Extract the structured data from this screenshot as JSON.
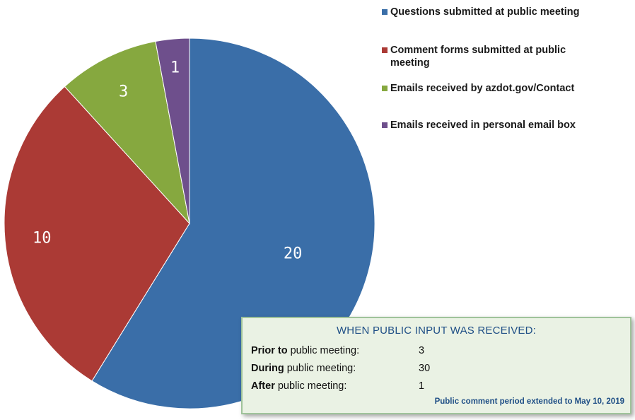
{
  "chart_data": {
    "type": "pie",
    "slices": [
      {
        "label": "Questions submitted at public meeting",
        "value": 20,
        "display": "20",
        "color": "#3a6ea8"
      },
      {
        "label": "Comment forms submitted at public meeting",
        "value": 10,
        "display": "10",
        "color": "#ab3a35"
      },
      {
        "label": "Emails received by azdot.gov/Contact",
        "value": 3,
        "display": "3",
        "color": "#86a83f"
      },
      {
        "label": "Emails received in personal email box",
        "value": 1,
        "display": "1",
        "color": "#6e4f8c"
      }
    ],
    "legend_position": "top-right"
  },
  "input_box": {
    "title": "WHEN PUBLIC INPUT WAS RECEIVED:",
    "rows": [
      {
        "bold": "Prior to",
        "rest": " public meeting:",
        "value": "3"
      },
      {
        "bold": "During",
        "rest": " public meeting:",
        "value": "30"
      },
      {
        "bold": "After",
        "rest": " public meeting:",
        "value": "1"
      }
    ],
    "footnote": "Public comment period extended to May 10, 2019"
  }
}
